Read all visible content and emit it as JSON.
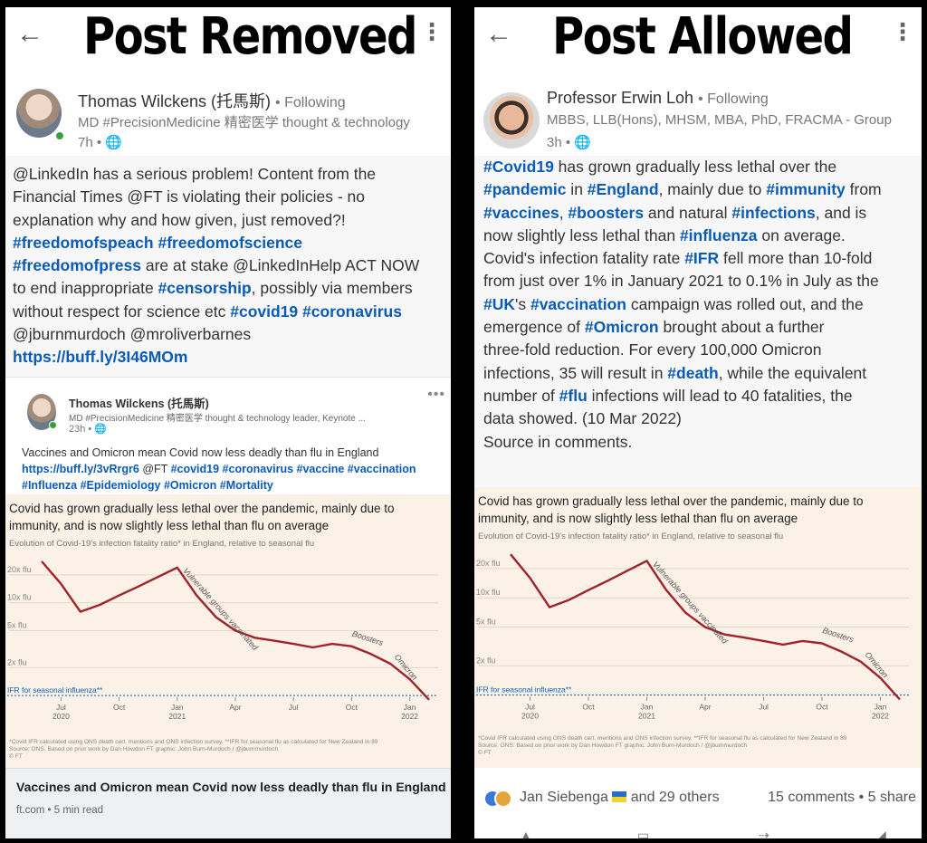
{
  "left": {
    "banner": "Post Removed",
    "author": {
      "name": "Thomas Wilckens (托馬斯)",
      "following": "• Following",
      "headline": "MD #PrecisionMedicine 精密医学 thought & technology",
      "time": "7h •"
    },
    "body_lines": [
      [
        {
          "t": "@LinkedIn has a serious problem! Content from the"
        }
      ],
      [
        {
          "t": "Financial Times @FT is violating their policies - no"
        }
      ],
      [
        {
          "t": "explanation why and how given, just removed?!"
        }
      ],
      [
        {
          "t": "#freedomofspeach",
          "k": "tag"
        },
        {
          "t": " "
        },
        {
          "t": "#freedomofscience",
          "k": "tag"
        }
      ],
      [
        {
          "t": "#freedomofpress",
          "k": "tag"
        },
        {
          "t": " are at stake @LinkedInHelp ACT NOW"
        }
      ],
      [
        {
          "t": "to end inappropriate "
        },
        {
          "t": "#censorship",
          "k": "tag"
        },
        {
          "t": ", possibly via members"
        }
      ],
      [
        {
          "t": "without respect for science etc "
        },
        {
          "t": "#covid19",
          "k": "tag"
        },
        {
          "t": " "
        },
        {
          "t": "#coronavirus",
          "k": "tag"
        }
      ],
      [
        {
          "t": "@jburnmurdoch @mroliverbarnes"
        }
      ],
      [
        {
          "t": "https://buff.ly/3I46MOm",
          "k": "link"
        }
      ]
    ],
    "embed": {
      "author": "Thomas Wilckens (托馬斯)",
      "headline": "MD #PrecisionMedicine 精密医学 thought & technology leader, Keynote ...",
      "time": "23h •",
      "lines": [
        [
          {
            "t": "Vaccines and Omicron mean Covid now less deadly than flu in England"
          }
        ],
        [
          {
            "t": "https://buff.ly/3vRrgr6",
            "k": "link"
          },
          {
            "t": " @FT "
          },
          {
            "t": "#covid19 #coronavirus #vaccine #vaccination",
            "k": "tag"
          }
        ],
        [
          {
            "t": "#Influenza #Epidemiology #Omicron #Mortality",
            "k": "tag"
          }
        ]
      ]
    },
    "link_card": {
      "title": "Vaccines and Omicron mean Covid now less deadly than flu in England",
      "source": "ft.com • 5 min read"
    }
  },
  "right": {
    "banner": "Post Allowed",
    "author": {
      "name": "Professor Erwin Loh",
      "following": "• Following",
      "headline": "MBBS, LLB(Hons), MHSM, MBA, PhD, FRACMA - Group",
      "time": "3h •"
    },
    "body_lines": [
      [
        {
          "t": "#Covid19",
          "k": "tag"
        },
        {
          "t": " has grown gradually less lethal over the"
        }
      ],
      [
        {
          "t": "#pandemic",
          "k": "tag"
        },
        {
          "t": " in "
        },
        {
          "t": "#England",
          "k": "tag"
        },
        {
          "t": ", mainly due to "
        },
        {
          "t": "#immunity",
          "k": "tag"
        },
        {
          "t": " from"
        }
      ],
      [
        {
          "t": "#vaccines",
          "k": "tag"
        },
        {
          "t": ", "
        },
        {
          "t": "#boosters",
          "k": "tag"
        },
        {
          "t": " and natural "
        },
        {
          "t": "#infections",
          "k": "tag"
        },
        {
          "t": ", and is"
        }
      ],
      [
        {
          "t": "now slightly less lethal than "
        },
        {
          "t": "#influenza",
          "k": "tag"
        },
        {
          "t": " on average."
        }
      ],
      [
        {
          "t": "Covid's infection fatality rate "
        },
        {
          "t": "#IFR",
          "k": "tag"
        },
        {
          "t": " fell more than 10-fold"
        }
      ],
      [
        {
          "t": "from just over 1% in January 2021 to 0.1% in July as the"
        }
      ],
      [
        {
          "t": "#UK",
          "k": "tag"
        },
        {
          "t": "'s "
        },
        {
          "t": "#vaccination",
          "k": "tag"
        },
        {
          "t": " campaign was rolled out, and the"
        }
      ],
      [
        {
          "t": "emergence of "
        },
        {
          "t": "#Omicron",
          "k": "tag"
        },
        {
          "t": " brought about a further"
        }
      ],
      [
        {
          "t": "three-fold reduction. For every 100,000 Omicron"
        }
      ],
      [
        {
          "t": "infections, 35 will result in "
        },
        {
          "t": "#death",
          "k": "tag"
        },
        {
          "t": ", while the equivalent"
        }
      ],
      [
        {
          "t": "number of "
        },
        {
          "t": "#flu",
          "k": "tag"
        },
        {
          "t": " infections will lead to 40 fatalities, the"
        }
      ],
      [
        {
          "t": "data showed. (10 Mar 2022)"
        }
      ],
      [
        {
          "t": " "
        }
      ],
      [
        {
          "t": "Source in comments."
        }
      ]
    ],
    "reactions": {
      "reactors": "Jan Siebenga",
      "others": "and 29 others",
      "counts": "15 comments • 5 share"
    }
  },
  "chart_data": [
    {
      "type": "line",
      "title_lines": [
        "Covid has grown gradually less lethal over the pandemic, mainly due to",
        "immunity, and is now slightly less lethal than flu on average"
      ],
      "subtitle": "Evolution of Covid-19's infection fatality ratio* in England, relative to seasonal flu",
      "y_tick_labels": [
        "20x flu",
        "10x flu",
        "5x flu",
        "2x flu"
      ],
      "baseline_label": "IFR for seasonal influenza**",
      "x_tick_labels": [
        [
          "Jul",
          "2020"
        ],
        [
          "Oct",
          ""
        ],
        [
          "Jan",
          "2021"
        ],
        [
          "Apr",
          ""
        ],
        [
          "Jul",
          ""
        ],
        [
          "Oct",
          ""
        ],
        [
          "Jan",
          "2022"
        ]
      ],
      "annotations": [
        "Vulnerable groups vaccinated",
        "Boosters",
        "Omicron"
      ],
      "series": [
        {
          "x": [
            "2020-06",
            "2020-07",
            "2020-08",
            "2020-09",
            "2020-10",
            "2020-11",
            "2020-12",
            "2021-01",
            "2021-02",
            "2021-03",
            "2021-04",
            "2021-05",
            "2021-06",
            "2021-07",
            "2021-08",
            "2021-09",
            "2021-10",
            "2021-11",
            "2021-12",
            "2022-01",
            "2022-02"
          ],
          "y": [
            28,
            16,
            8,
            9.5,
            12,
            15,
            19,
            24,
            12,
            7,
            5,
            4.2,
            3.9,
            3.6,
            3.3,
            3.6,
            3.4,
            2.8,
            2.2,
            1.5,
            0.9
          ]
        }
      ],
      "footnote_lines": [
        "*Covid IFR calculated using ONS death cert. mentions and ONS infection survey. **IFR for seasonal flu as calculated for New Zealand in 89",
        "Source: ONS. Based on prior work by Dan Howdon      FT graphic: John Burn-Murdoch / @jburnmurdoch",
        "© FT"
      ],
      "colors": {
        "line": "#a0222a",
        "background": "#fbf1e6",
        "baseline": "#0b5fb8"
      }
    }
  ],
  "icons": {
    "back": "back-arrow-icon",
    "menu": "kebab-menu-icon",
    "globe": "globe-icon"
  }
}
